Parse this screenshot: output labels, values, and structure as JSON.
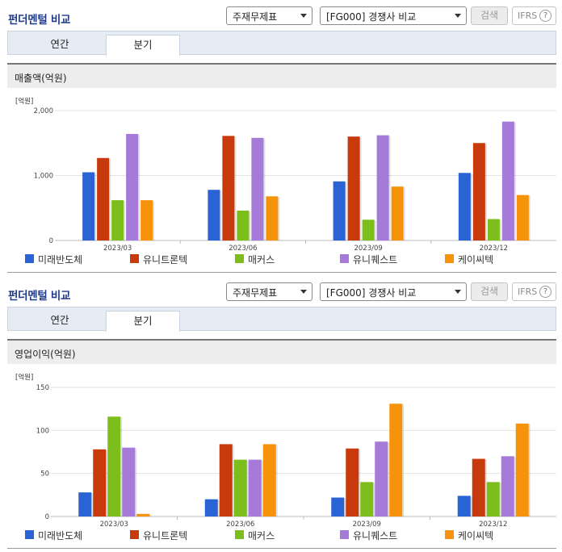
{
  "sections": [
    {
      "title": "펀더멘털 비교",
      "select1": "주재무제표",
      "select2": "[FG000] 경쟁사 비교",
      "search_button": "검색",
      "ifrs_label": "IFRS",
      "help_icon": "?",
      "tabs": [
        "연간",
        "분기"
      ],
      "active_tab": "분기",
      "metric": "매출액(억원)",
      "unit": "[억원]",
      "chart_data": {
        "type": "bar",
        "categories": [
          "2023/03",
          "2023/06",
          "2023/09",
          "2023/12"
        ],
        "ylim": [
          0,
          2000
        ],
        "yticks": [
          0,
          1000,
          2000
        ],
        "ytick_labels": [
          "0",
          "1,000",
          "2,000"
        ],
        "series": [
          {
            "name": "미래반도체",
            "color": "#2a63d4",
            "values": [
              1050,
              780,
              910,
              1040
            ]
          },
          {
            "name": "유니트론텍",
            "color": "#c83a0b",
            "values": [
              1270,
              1610,
              1600,
              1500
            ]
          },
          {
            "name": "매커스",
            "color": "#7cbf1c",
            "values": [
              620,
              460,
              320,
              330
            ]
          },
          {
            "name": "유니퀘스트",
            "color": "#a67ad8",
            "values": [
              1640,
              1580,
              1620,
              1830
            ]
          },
          {
            "name": "케이씨텍",
            "color": "#f7930b",
            "values": [
              620,
              680,
              830,
              700
            ]
          }
        ]
      }
    },
    {
      "title": "펀더멘털 비교",
      "select1": "주재무제표",
      "select2": "[FG000] 경쟁사 비교",
      "search_button": "검색",
      "ifrs_label": "IFRS",
      "help_icon": "?",
      "tabs": [
        "연간",
        "분기"
      ],
      "active_tab": "분기",
      "metric": "영업이익(억원)",
      "unit": "[억원]",
      "chart_data": {
        "type": "bar",
        "categories": [
          "2023/03",
          "2023/06",
          "2023/09",
          "2023/12"
        ],
        "ylim": [
          0,
          150
        ],
        "yticks": [
          0,
          50,
          100,
          150
        ],
        "ytick_labels": [
          "0",
          "50",
          "100",
          "150"
        ],
        "series": [
          {
            "name": "미래반도체",
            "color": "#2a63d4",
            "values": [
              28,
              20,
              22,
              24
            ]
          },
          {
            "name": "유니트론텍",
            "color": "#c83a0b",
            "values": [
              78,
              84,
              79,
              67
            ]
          },
          {
            "name": "매커스",
            "color": "#7cbf1c",
            "values": [
              116,
              66,
              40,
              40
            ]
          },
          {
            "name": "유니퀘스트",
            "color": "#a67ad8",
            "values": [
              80,
              66,
              87,
              70
            ]
          },
          {
            "name": "케이씨텍",
            "color": "#f7930b",
            "values": [
              3,
              84,
              131,
              108
            ]
          }
        ]
      }
    }
  ]
}
